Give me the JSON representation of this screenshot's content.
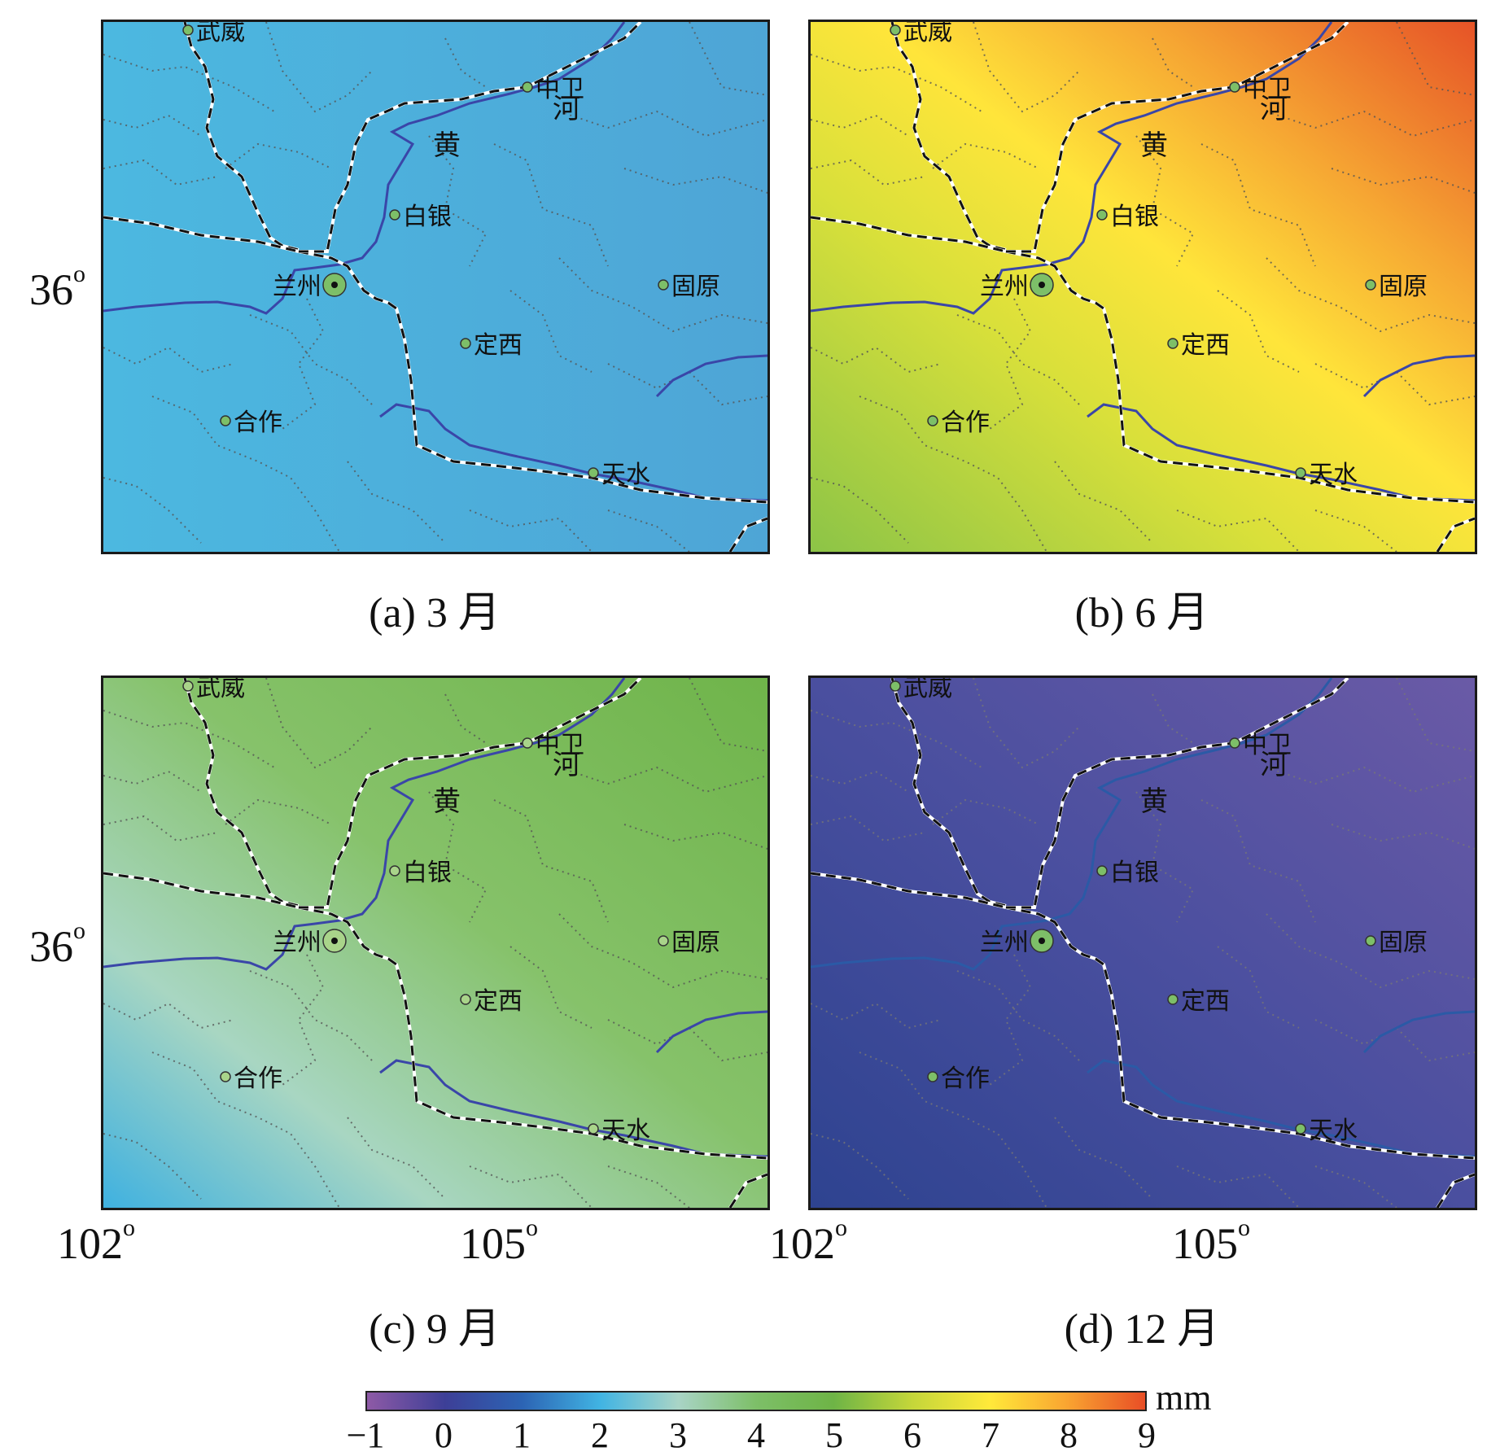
{
  "panels": [
    {
      "caption": "(a) 3 月",
      "theme": "march"
    },
    {
      "caption": "(b) 6 月",
      "theme": "june"
    },
    {
      "caption": "(c) 9 月",
      "theme": "september"
    },
    {
      "caption": "(d) 12 月",
      "theme": "december"
    }
  ],
  "cities": [
    {
      "name": "武威",
      "label_dx": 10,
      "label_dy": 12
    },
    {
      "name": "中卫",
      "label_dx": 10,
      "label_dy": 12
    },
    {
      "name": "白银",
      "label_dx": 10,
      "label_dy": 12
    },
    {
      "name": "兰州",
      "label_dx": -76,
      "label_dy": 12
    },
    {
      "name": "固原",
      "label_dx": 10,
      "label_dy": 12
    },
    {
      "name": "定西",
      "label_dx": 10,
      "label_dy": 12
    },
    {
      "name": "合作",
      "label_dx": 10,
      "label_dy": 12
    },
    {
      "name": "天水",
      "label_dx": 10,
      "label_dy": 12
    }
  ],
  "river_label": {
    "char1": "河",
    "char2": "黄"
  },
  "axes": {
    "lat_tick": "36",
    "lon_ticks": [
      "102",
      "105"
    ],
    "degree_symbol": "o"
  },
  "colorbar": {
    "unit": "mm",
    "ticks": [
      "−1",
      "0",
      "1",
      "2",
      "3",
      "4",
      "5",
      "6",
      "7",
      "8",
      "9"
    ],
    "range": [
      -1,
      9
    ],
    "stops": [
      "#8e5aa6",
      "#3d3f97",
      "#2c64b4",
      "#41b4e3",
      "#a9d4c6",
      "#7dbf68",
      "#6eb446",
      "#c4d63a",
      "#ffe93a",
      "#f9a431",
      "#e84e26"
    ]
  }
}
